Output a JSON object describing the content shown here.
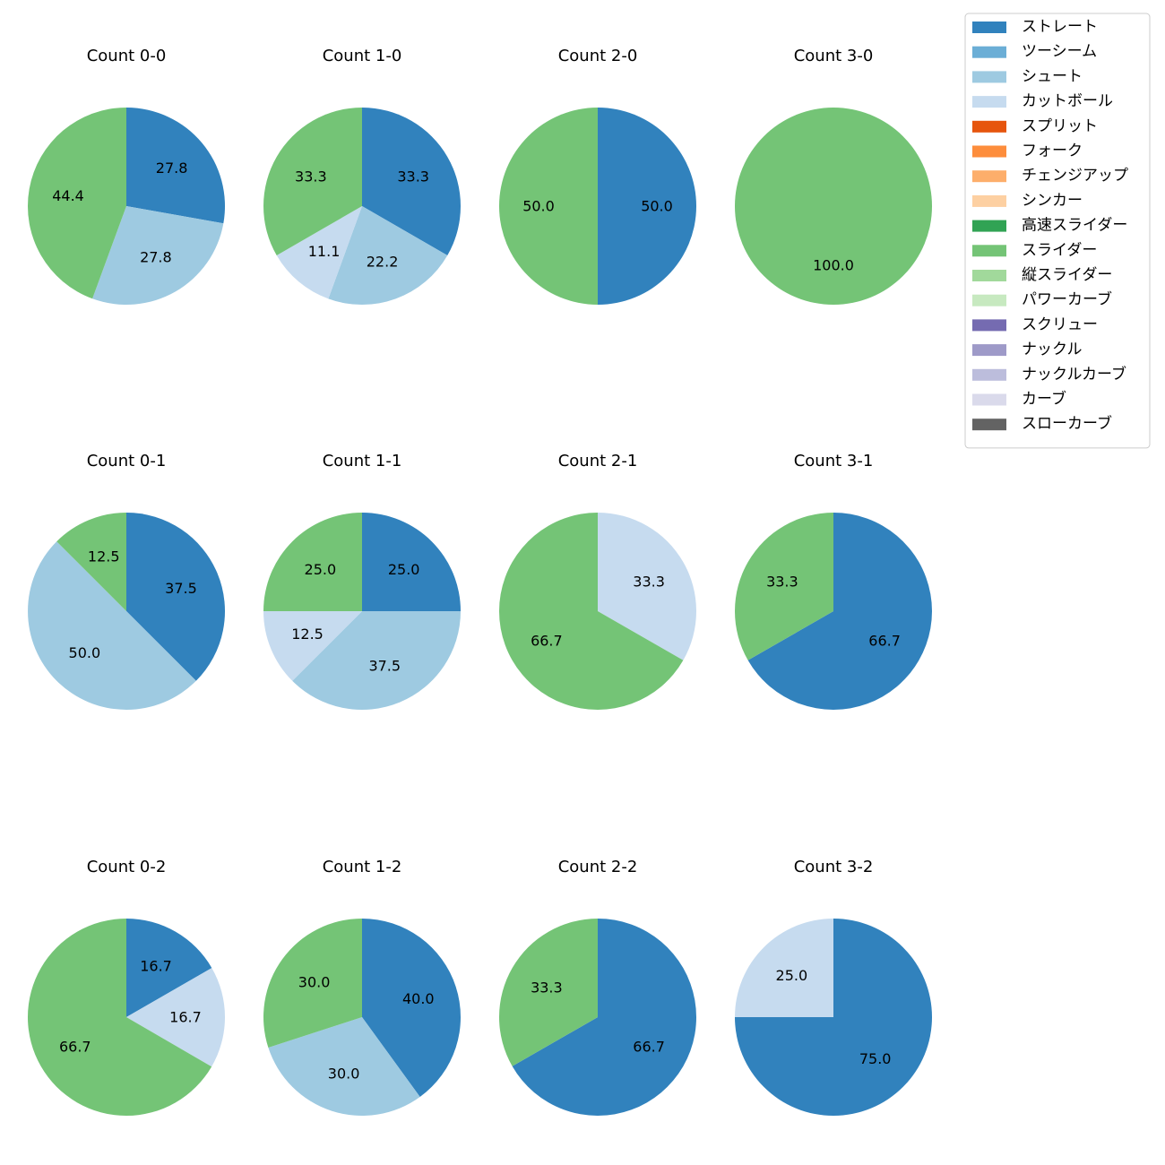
{
  "chart_data": {
    "type": "pie",
    "legend": {
      "placement": "top-right",
      "entries": [
        {
          "name": "ストレート",
          "color": "#3182bd"
        },
        {
          "name": "ツーシーム",
          "color": "#6baed6"
        },
        {
          "name": "シュート",
          "color": "#9ecae1"
        },
        {
          "name": "カットボール",
          "color": "#c6dbef"
        },
        {
          "name": "スプリット",
          "color": "#e6550d"
        },
        {
          "name": "フォーク",
          "color": "#fd8d3c"
        },
        {
          "name": "チェンジアップ",
          "color": "#fdae6b"
        },
        {
          "name": "シンカー",
          "color": "#fdd0a2"
        },
        {
          "name": "高速スライダー",
          "color": "#31a354"
        },
        {
          "name": "スライダー",
          "color": "#74c476"
        },
        {
          "name": "縦スライダー",
          "color": "#a1d99b"
        },
        {
          "name": "パワーカーブ",
          "color": "#c7e9c0"
        },
        {
          "name": "スクリュー",
          "color": "#756bb1"
        },
        {
          "name": "ナックル",
          "color": "#9e9ac8"
        },
        {
          "name": "ナックルカーブ",
          "color": "#bcbddc"
        },
        {
          "name": "カーブ",
          "color": "#dadaeb"
        },
        {
          "name": "スローカーブ",
          "color": "#636363"
        }
      ]
    },
    "pies": [
      {
        "title": "Count 0-0",
        "slices": [
          {
            "pitch": "ストレート",
            "value": 27.8,
            "label": "27.8"
          },
          {
            "pitch": "シュート",
            "value": 27.8,
            "label": "27.8"
          },
          {
            "pitch": "スライダー",
            "value": 44.4,
            "label": "44.4"
          }
        ]
      },
      {
        "title": "Count 1-0",
        "slices": [
          {
            "pitch": "ストレート",
            "value": 33.3,
            "label": "33.3"
          },
          {
            "pitch": "シュート",
            "value": 22.2,
            "label": "22.2"
          },
          {
            "pitch": "カットボール",
            "value": 11.1,
            "label": "11.1"
          },
          {
            "pitch": "スライダー",
            "value": 33.3,
            "label": "33.3"
          }
        ]
      },
      {
        "title": "Count 2-0",
        "slices": [
          {
            "pitch": "ストレート",
            "value": 50.0,
            "label": "50.0"
          },
          {
            "pitch": "スライダー",
            "value": 50.0,
            "label": "50.0"
          }
        ]
      },
      {
        "title": "Count 3-0",
        "slices": [
          {
            "pitch": "スライダー",
            "value": 100.0,
            "label": "100.0"
          }
        ]
      },
      {
        "title": "Count 0-1",
        "slices": [
          {
            "pitch": "ストレート",
            "value": 37.5,
            "label": "37.5"
          },
          {
            "pitch": "シュート",
            "value": 50.0,
            "label": "50.0"
          },
          {
            "pitch": "スライダー",
            "value": 12.5,
            "label": "12.5"
          }
        ]
      },
      {
        "title": "Count 1-1",
        "slices": [
          {
            "pitch": "ストレート",
            "value": 25.0,
            "label": "25.0"
          },
          {
            "pitch": "シュート",
            "value": 37.5,
            "label": "37.5"
          },
          {
            "pitch": "カットボール",
            "value": 12.5,
            "label": "12.5"
          },
          {
            "pitch": "スライダー",
            "value": 25.0,
            "label": "25.0"
          }
        ]
      },
      {
        "title": "Count 2-1",
        "slices": [
          {
            "pitch": "カットボール",
            "value": 33.3,
            "label": "33.3"
          },
          {
            "pitch": "スライダー",
            "value": 66.7,
            "label": "66.7"
          }
        ]
      },
      {
        "title": "Count 3-1",
        "slices": [
          {
            "pitch": "ストレート",
            "value": 66.7,
            "label": "66.7"
          },
          {
            "pitch": "スライダー",
            "value": 33.3,
            "label": "33.3"
          }
        ]
      },
      {
        "title": "Count 0-2",
        "slices": [
          {
            "pitch": "ストレート",
            "value": 16.7,
            "label": "16.7"
          },
          {
            "pitch": "カットボール",
            "value": 16.7,
            "label": "16.7"
          },
          {
            "pitch": "スライダー",
            "value": 66.7,
            "label": "66.7"
          }
        ]
      },
      {
        "title": "Count 1-2",
        "slices": [
          {
            "pitch": "ストレート",
            "value": 40.0,
            "label": "40.0"
          },
          {
            "pitch": "シュート",
            "value": 30.0,
            "label": "30.0"
          },
          {
            "pitch": "スライダー",
            "value": 30.0,
            "label": "30.0"
          }
        ]
      },
      {
        "title": "Count 2-2",
        "slices": [
          {
            "pitch": "ストレート",
            "value": 66.7,
            "label": "66.7"
          },
          {
            "pitch": "スライダー",
            "value": 33.3,
            "label": "33.3"
          }
        ]
      },
      {
        "title": "Count 3-2",
        "slices": [
          {
            "pitch": "ストレート",
            "value": 75.0,
            "label": "75.0"
          },
          {
            "pitch": "カットボール",
            "value": 25.0,
            "label": "25.0"
          }
        ]
      }
    ]
  }
}
